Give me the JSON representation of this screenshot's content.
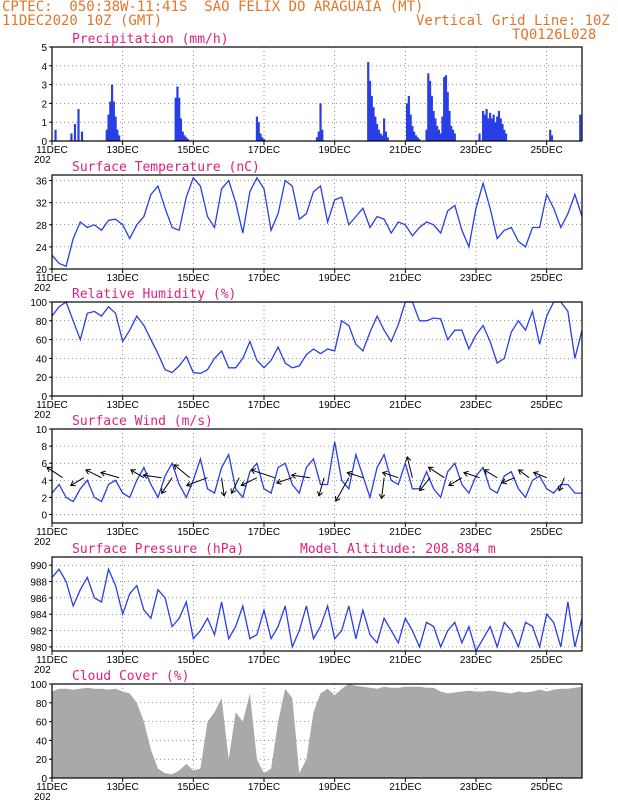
{
  "header": {
    "line1": "CPTEC:  050:38W-11:41S  SAO FELIX DO ARAGUAIA (MT)",
    "line2_left": "11DEC2020 10Z (GMT)",
    "line2_right": "Vertical Grid Line: 10Z",
    "line3_right": "TQ0126L028"
  },
  "colors": {
    "accent": "#e0762a",
    "title": "#e0207f",
    "series": "#2a3ee6",
    "cloud": "#a9a9a9"
  },
  "x_axis": {
    "ticks": [
      "11DEC",
      "13DEC",
      "15DEC",
      "17DEC",
      "19DEC",
      "21DEC",
      "23DEC",
      "25DEC"
    ],
    "tick_days": [
      0,
      2,
      4,
      6,
      8,
      10,
      12,
      14
    ],
    "range_days": [
      0,
      15
    ],
    "year_label": "202"
  },
  "chart_data": [
    {
      "type": "bar",
      "title": "Precipitation (mm/h)",
      "ylim": [
        0,
        5
      ],
      "yticks": [
        0,
        1,
        2,
        3,
        4,
        5
      ],
      "x": [
        0.1,
        0.55,
        0.65,
        0.75,
        0.85,
        1.55,
        1.6,
        1.65,
        1.7,
        1.75,
        1.8,
        1.85,
        1.9,
        3.5,
        3.55,
        3.6,
        3.65,
        3.7,
        3.75,
        3.8,
        3.85,
        5.8,
        5.85,
        5.9,
        5.95,
        6.0,
        7.5,
        7.55,
        7.6,
        7.65,
        8.95,
        9.0,
        9.05,
        9.1,
        9.15,
        9.2,
        9.25,
        9.3,
        9.35,
        9.4,
        9.45,
        9.5,
        10.05,
        10.1,
        10.15,
        10.2,
        10.25,
        10.3,
        10.35,
        10.4,
        10.6,
        10.65,
        10.7,
        10.75,
        10.8,
        10.85,
        10.9,
        10.95,
        11.0,
        11.05,
        11.1,
        11.15,
        11.2,
        11.25,
        11.3,
        11.35,
        11.4,
        12.1,
        12.2,
        12.25,
        12.3,
        12.35,
        12.4,
        12.45,
        12.5,
        12.55,
        12.6,
        12.65,
        12.7,
        12.75,
        12.8,
        12.85,
        14.1,
        14.15,
        14.95
      ],
      "values": [
        0.6,
        0.4,
        0.9,
        1.7,
        0.5,
        0.6,
        1.4,
        2.1,
        3.0,
        2.1,
        1.3,
        0.6,
        0.3,
        2.3,
        2.9,
        2.3,
        1.2,
        0.5,
        0.3,
        0.2,
        0.1,
        1.3,
        1.0,
        0.4,
        0.2,
        0.1,
        0.2,
        0.5,
        2.0,
        0.6,
        4.2,
        3.2,
        2.4,
        1.8,
        1.3,
        0.9,
        0.6,
        0.4,
        0.3,
        1.2,
        0.5,
        0.2,
        2.0,
        2.4,
        1.4,
        0.8,
        0.5,
        0.3,
        0.2,
        0.1,
        0.6,
        3.6,
        3.2,
        2.4,
        1.6,
        1.2,
        0.8,
        0.6,
        0.4,
        1.3,
        3.4,
        3.5,
        2.6,
        1.6,
        0.8,
        0.6,
        0.4,
        0.4,
        1.6,
        1.4,
        1.7,
        1.2,
        1.5,
        1.2,
        1.4,
        1.0,
        1.3,
        1.6,
        1.2,
        0.9,
        0.6,
        0.4,
        0.6,
        0.3,
        1.4
      ]
    },
    {
      "type": "line",
      "title": "Surface Temperature (nC)",
      "ylim": [
        20,
        37
      ],
      "yticks": [
        20,
        24,
        28,
        32,
        36
      ],
      "x": [
        0,
        0.2,
        0.4,
        0.6,
        0.8,
        1.0,
        1.2,
        1.4,
        1.6,
        1.8,
        2.0,
        2.2,
        2.4,
        2.6,
        2.8,
        3.0,
        3.2,
        3.4,
        3.6,
        3.8,
        4.0,
        4.2,
        4.4,
        4.6,
        4.8,
        5.0,
        5.2,
        5.4,
        5.6,
        5.8,
        6.0,
        6.2,
        6.4,
        6.6,
        6.8,
        7.0,
        7.2,
        7.4,
        7.6,
        7.8,
        8.0,
        8.2,
        8.4,
        8.6,
        8.8,
        9.0,
        9.2,
        9.4,
        9.6,
        9.8,
        10.0,
        10.2,
        10.4,
        10.6,
        10.8,
        11.0,
        11.2,
        11.4,
        11.6,
        11.8,
        12.0,
        12.2,
        12.4,
        12.6,
        12.8,
        13.0,
        13.2,
        13.4,
        13.6,
        13.8,
        14.0,
        14.2,
        14.4,
        14.6,
        14.8,
        15.0
      ],
      "values": [
        22.5,
        21.0,
        20.5,
        25.5,
        28.5,
        27.5,
        28.0,
        27.0,
        28.8,
        29.0,
        28.0,
        25.5,
        28.0,
        29.5,
        33.5,
        35.0,
        31.0,
        27.5,
        27.0,
        33.0,
        36.5,
        35.0,
        29.5,
        27.5,
        34.5,
        36.0,
        32.0,
        26.5,
        34.0,
        36.5,
        34.5,
        27.0,
        30.0,
        36.0,
        35.0,
        29.0,
        30.0,
        34.0,
        35.0,
        28.5,
        32.5,
        33.0,
        28.0,
        29.5,
        31.0,
        27.5,
        29.5,
        29.0,
        26.5,
        28.5,
        28.0,
        26.0,
        27.5,
        28.5,
        28.0,
        26.5,
        30.5,
        31.5,
        27.0,
        24.0,
        31.0,
        35.5,
        31.0,
        25.5,
        27.0,
        27.5,
        25.0,
        24.0,
        27.5,
        27.5,
        33.5,
        31.0,
        27.5,
        30.0,
        33.5,
        29.5
      ]
    },
    {
      "type": "line",
      "title": "Relative Humidity (%)",
      "ylim": [
        0,
        100
      ],
      "yticks": [
        0,
        20,
        40,
        60,
        80,
        100
      ],
      "x": [
        0,
        0.2,
        0.4,
        0.6,
        0.8,
        1.0,
        1.2,
        1.4,
        1.6,
        1.8,
        2.0,
        2.2,
        2.4,
        2.6,
        2.8,
        3.0,
        3.2,
        3.4,
        3.6,
        3.8,
        4.0,
        4.2,
        4.4,
        4.6,
        4.8,
        5.0,
        5.2,
        5.4,
        5.6,
        5.8,
        6.0,
        6.2,
        6.4,
        6.6,
        6.8,
        7.0,
        7.2,
        7.4,
        7.6,
        7.8,
        8.0,
        8.2,
        8.4,
        8.6,
        8.8,
        9.0,
        9.2,
        9.4,
        9.6,
        9.8,
        10.0,
        10.2,
        10.4,
        10.6,
        10.8,
        11.0,
        11.2,
        11.4,
        11.6,
        11.8,
        12.0,
        12.2,
        12.4,
        12.6,
        12.8,
        13.0,
        13.2,
        13.4,
        13.6,
        13.8,
        14.0,
        14.2,
        14.4,
        14.6,
        14.8,
        15.0
      ],
      "values": [
        85,
        95,
        100,
        80,
        60,
        88,
        90,
        85,
        95,
        88,
        58,
        70,
        85,
        75,
        60,
        45,
        28,
        25,
        32,
        42,
        25,
        24,
        28,
        40,
        48,
        30,
        30,
        40,
        58,
        38,
        30,
        38,
        52,
        35,
        30,
        32,
        44,
        50,
        45,
        50,
        48,
        80,
        75,
        55,
        48,
        68,
        85,
        70,
        58,
        76,
        100,
        100,
        80,
        80,
        83,
        82,
        60,
        70,
        70,
        50,
        65,
        75,
        58,
        35,
        40,
        68,
        80,
        70,
        90,
        55,
        85,
        100,
        100,
        90,
        40,
        70
      ]
    },
    {
      "type": "line",
      "title": "Surface Wind (m/s)",
      "ylim": [
        -1,
        10
      ],
      "yticks": [
        0,
        2,
        4,
        6,
        8,
        10
      ],
      "x": [
        0,
        0.2,
        0.4,
        0.6,
        0.8,
        1.0,
        1.2,
        1.4,
        1.6,
        1.8,
        2.0,
        2.2,
        2.4,
        2.6,
        2.8,
        3.0,
        3.2,
        3.4,
        3.6,
        3.8,
        4.0,
        4.2,
        4.4,
        4.6,
        4.8,
        5.0,
        5.2,
        5.4,
        5.6,
        5.8,
        6.0,
        6.2,
        6.4,
        6.6,
        6.8,
        7.0,
        7.2,
        7.4,
        7.6,
        7.8,
        8.0,
        8.2,
        8.4,
        8.6,
        8.8,
        9.0,
        9.2,
        9.4,
        9.6,
        9.8,
        10.0,
        10.2,
        10.4,
        10.6,
        10.8,
        11.0,
        11.2,
        11.4,
        11.6,
        11.8,
        12.0,
        12.2,
        12.4,
        12.6,
        12.8,
        13.0,
        13.2,
        13.4,
        13.6,
        13.8,
        14.0,
        14.2,
        14.4,
        14.6,
        14.8,
        15.0
      ],
      "values": [
        2.5,
        3.5,
        2.0,
        1.5,
        3.0,
        4.0,
        2.0,
        1.5,
        3.5,
        4.0,
        2.5,
        2.0,
        4.0,
        5.5,
        3.5,
        2.0,
        4.5,
        6.0,
        3.5,
        2.0,
        4.0,
        6.5,
        3.0,
        2.5,
        5.5,
        7.0,
        3.0,
        2.0,
        5.0,
        6.0,
        3.0,
        2.5,
        5.5,
        6.0,
        3.5,
        2.5,
        5.5,
        6.5,
        3.5,
        3.5,
        8.5,
        4.0,
        3.0,
        7.0,
        4.5,
        2.0,
        5.5,
        7.0,
        4.0,
        3.5,
        6.0,
        3.0,
        3.0,
        5.0,
        3.0,
        2.0,
        5.0,
        6.0,
        3.5,
        2.5,
        4.5,
        5.5,
        3.0,
        2.5,
        4.5,
        5.0,
        3.0,
        2.0,
        4.0,
        4.5,
        3.0,
        2.5,
        3.5,
        3.5,
        2.5,
        2.5
      ],
      "vectors": [
        {
          "x": 0.3,
          "u": -0.6,
          "v": 0.4
        },
        {
          "x": 0.9,
          "u": -0.5,
          "v": -0.3
        },
        {
          "x": 1.4,
          "u": -0.6,
          "v": 0.3
        },
        {
          "x": 1.9,
          "u": -0.7,
          "v": 0.2
        },
        {
          "x": 2.6,
          "u": -0.5,
          "v": 0.3
        },
        {
          "x": 3.1,
          "u": -0.7,
          "v": 0.1
        },
        {
          "x": 3.4,
          "u": -0.4,
          "v": -0.6
        },
        {
          "x": 3.9,
          "u": -0.6,
          "v": 0.5
        },
        {
          "x": 4.4,
          "u": -0.8,
          "v": -0.3
        },
        {
          "x": 4.8,
          "u": 0.1,
          "v": -0.7
        },
        {
          "x": 5.3,
          "u": -0.3,
          "v": -0.6
        },
        {
          "x": 5.8,
          "u": -0.6,
          "v": -0.3
        },
        {
          "x": 6.3,
          "u": -0.9,
          "v": 0.3
        },
        {
          "x": 6.8,
          "u": -0.6,
          "v": -0.2
        },
        {
          "x": 7.3,
          "u": -0.7,
          "v": 0.1
        },
        {
          "x": 7.7,
          "u": -0.2,
          "v": -0.7
        },
        {
          "x": 8.4,
          "u": -0.5,
          "v": -0.9
        },
        {
          "x": 8.8,
          "u": -0.6,
          "v": 0.2
        },
        {
          "x": 9.4,
          "u": -0.1,
          "v": -0.8
        },
        {
          "x": 9.8,
          "u": -0.6,
          "v": 0.2
        },
        {
          "x": 10.2,
          "u": -0.2,
          "v": 0.8
        },
        {
          "x": 10.7,
          "u": -0.4,
          "v": -0.5
        },
        {
          "x": 11.1,
          "u": -0.6,
          "v": 0.4
        },
        {
          "x": 11.6,
          "u": -0.5,
          "v": -0.3
        },
        {
          "x": 12.1,
          "u": -0.6,
          "v": 0.2
        },
        {
          "x": 12.6,
          "u": -0.5,
          "v": 0.3
        },
        {
          "x": 13.1,
          "u": -0.5,
          "v": -0.2
        },
        {
          "x": 13.5,
          "u": -0.4,
          "v": 0.3
        },
        {
          "x": 14.0,
          "u": -0.5,
          "v": 0.2
        },
        {
          "x": 14.5,
          "u": -0.2,
          "v": -0.5
        }
      ]
    },
    {
      "type": "line",
      "title": "Surface Pressure (hPa)",
      "annotation": "Model Altitude: 208.884 m",
      "ylim": [
        979.5,
        991
      ],
      "yticks": [
        980,
        982,
        984,
        986,
        988,
        990
      ],
      "x": [
        0,
        0.2,
        0.4,
        0.6,
        0.8,
        1.0,
        1.2,
        1.4,
        1.6,
        1.8,
        2.0,
        2.2,
        2.4,
        2.6,
        2.8,
        3.0,
        3.2,
        3.4,
        3.6,
        3.8,
        4.0,
        4.2,
        4.4,
        4.6,
        4.8,
        5.0,
        5.2,
        5.4,
        5.6,
        5.8,
        6.0,
        6.2,
        6.4,
        6.6,
        6.8,
        7.0,
        7.2,
        7.4,
        7.6,
        7.8,
        8.0,
        8.2,
        8.4,
        8.6,
        8.8,
        9.0,
        9.2,
        9.4,
        9.6,
        9.8,
        10.0,
        10.2,
        10.4,
        10.6,
        10.8,
        11.0,
        11.2,
        11.4,
        11.6,
        11.8,
        12.0,
        12.2,
        12.4,
        12.6,
        12.8,
        13.0,
        13.2,
        13.4,
        13.6,
        13.8,
        14.0,
        14.2,
        14.4,
        14.6,
        14.8,
        15.0
      ],
      "values": [
        988.5,
        989.5,
        988.0,
        985.0,
        987.0,
        988.5,
        986.0,
        985.5,
        989.5,
        987.5,
        984.0,
        986.5,
        987.5,
        984.5,
        983.5,
        987.0,
        986.0,
        982.5,
        983.5,
        985.5,
        981.0,
        982.0,
        983.5,
        981.5,
        985.5,
        981.0,
        982.5,
        985.0,
        981.0,
        981.5,
        984.5,
        981.0,
        982.5,
        985.0,
        980.0,
        982.0,
        985.0,
        981.0,
        982.5,
        985.0,
        981.0,
        982.0,
        985.0,
        981.0,
        984.5,
        981.5,
        980.5,
        983.5,
        982.0,
        980.5,
        983.5,
        982.0,
        980.0,
        983.0,
        982.5,
        980.0,
        982.0,
        983.0,
        980.5,
        982.5,
        979.5,
        981.0,
        982.5,
        980.0,
        983.0,
        982.0,
        980.0,
        983.0,
        982.5,
        980.0,
        984.0,
        983.0,
        980.0,
        985.5,
        980.0,
        983.5
      ]
    },
    {
      "type": "area",
      "title": "Cloud Cover (%)",
      "ylim": [
        0,
        100
      ],
      "yticks": [
        0,
        20,
        40,
        60,
        80,
        100
      ],
      "x": [
        0,
        0.2,
        0.4,
        0.6,
        0.8,
        1.0,
        1.2,
        1.4,
        1.6,
        1.8,
        2.0,
        2.2,
        2.4,
        2.6,
        2.8,
        3.0,
        3.2,
        3.4,
        3.6,
        3.8,
        4.0,
        4.2,
        4.4,
        4.6,
        4.8,
        5.0,
        5.2,
        5.4,
        5.6,
        5.8,
        6.0,
        6.2,
        6.4,
        6.6,
        6.8,
        7.0,
        7.2,
        7.4,
        7.6,
        7.8,
        8.0,
        8.2,
        8.4,
        8.6,
        8.8,
        9.0,
        9.2,
        9.4,
        9.6,
        9.8,
        10.0,
        10.2,
        10.4,
        10.6,
        10.8,
        11.0,
        11.2,
        11.4,
        11.6,
        11.8,
        12.0,
        12.2,
        12.4,
        12.6,
        12.8,
        13.0,
        13.2,
        13.4,
        13.6,
        13.8,
        14.0,
        14.2,
        14.4,
        14.6,
        14.8,
        15.0
      ],
      "values": [
        92,
        95,
        95,
        94,
        95,
        96,
        95,
        95,
        94,
        95,
        92,
        90,
        80,
        60,
        30,
        10,
        5,
        4,
        8,
        15,
        8,
        10,
        60,
        70,
        85,
        20,
        70,
        60,
        90,
        20,
        5,
        10,
        60,
        95,
        85,
        5,
        20,
        70,
        90,
        95,
        88,
        95,
        100,
        98,
        97,
        96,
        95,
        97,
        96,
        96,
        97,
        97,
        97,
        96,
        96,
        92,
        90,
        91,
        92,
        93,
        92,
        92,
        93,
        92,
        91,
        90,
        92,
        91,
        92,
        94,
        92,
        94,
        95,
        95,
        96,
        97
      ]
    }
  ]
}
